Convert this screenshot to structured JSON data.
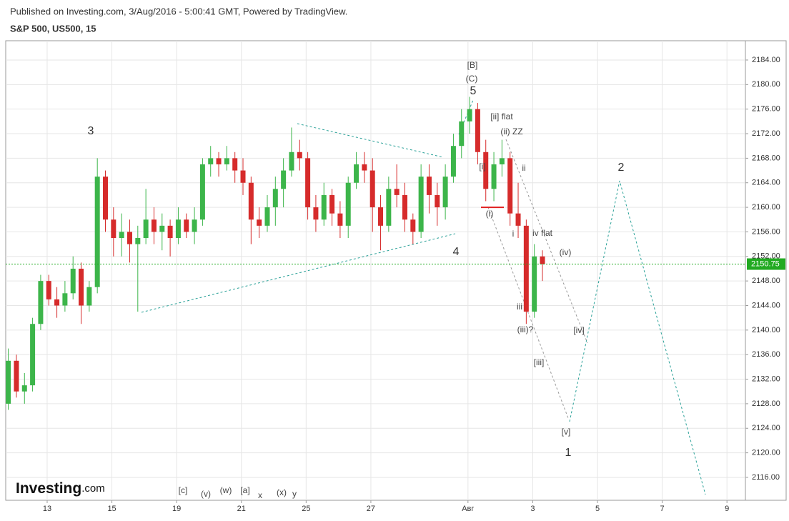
{
  "header": {
    "published": "Published on Investing.com, 3/Aug/2016 - 5:00:41 GMT, Powered by TradingView.",
    "symbol": "S&P 500, US500, 15",
    "logo_brand": "Investing",
    "logo_suffix": ".com"
  },
  "chart_data": {
    "type": "candlestick",
    "up_color": "#3cb54a",
    "down_color": "#d62b2b",
    "x": [
      -0.2,
      0.05,
      0.3,
      0.55,
      0.8,
      1.05,
      1.3,
      1.55,
      1.8,
      2.05,
      2.3,
      2.55,
      2.8,
      3.05,
      3.3,
      3.55,
      3.8,
      4.05,
      4.3,
      4.55,
      4.8,
      5.05,
      5.3,
      5.55,
      5.8,
      6.05,
      6.3,
      6.55,
      6.8,
      7.05,
      7.3,
      7.55,
      7.8,
      8.05,
      8.3,
      8.55,
      8.8,
      9.05,
      9.3,
      9.55,
      9.8,
      10.05,
      10.3,
      10.55,
      10.8,
      11.05,
      11.3,
      11.55,
      11.8,
      12.05,
      12.3,
      12.55,
      12.8,
      13.05,
      13.3,
      13.55,
      13.8,
      14.05,
      14.3,
      14.55,
      14.8,
      15.05,
      15.3,
      15.55,
      15.8,
      16.05,
      16.3
    ],
    "open": [
      2128,
      2135,
      2130,
      2131,
      2141,
      2148,
      2145,
      2144,
      2146,
      2150,
      2144,
      2147,
      2165,
      2158,
      2155,
      2156,
      2154,
      2155,
      2158,
      2156,
      2157,
      2155,
      2158,
      2156,
      2158,
      2167,
      2168,
      2167,
      2168,
      2166,
      2164,
      2158,
      2157,
      2160,
      2163,
      2166,
      2169,
      2168,
      2160,
      2158,
      2162,
      2159,
      2157,
      2164,
      2167,
      2166,
      2160,
      2157,
      2163,
      2162,
      2158,
      2156,
      2165,
      2162,
      2160,
      2165,
      2170,
      2174,
      2176,
      2169,
      2163,
      2167,
      2168,
      2159,
      2157,
      2143,
      2152
    ],
    "high": [
      2137,
      2136,
      2133,
      2142,
      2149,
      2149,
      2147,
      2148,
      2152,
      2151,
      2148,
      2168,
      2166,
      2160,
      2159,
      2158,
      2157,
      2163,
      2160,
      2159,
      2158,
      2160,
      2159,
      2160,
      2168,
      2170,
      2169,
      2170,
      2169,
      2168,
      2165,
      2160,
      2162,
      2165,
      2168,
      2173,
      2171,
      2169,
      2162,
      2164,
      2163,
      2161,
      2165,
      2169,
      2169,
      2168,
      2162,
      2165,
      2167,
      2164,
      2159,
      2167,
      2167,
      2164,
      2167,
      2172,
      2176,
      2178,
      2177,
      2171,
      2169,
      2171,
      2169,
      2164,
      2158,
      2154,
      2153
    ],
    "low": [
      2127,
      2129,
      2128,
      2130,
      2140,
      2144,
      2142,
      2143,
      2145,
      2141,
      2143,
      2146,
      2156,
      2152,
      2152,
      2151,
      2143,
      2154,
      2154,
      2153,
      2152,
      2154,
      2155,
      2154,
      2157,
      2165,
      2165,
      2166,
      2164,
      2162,
      2154,
      2155,
      2156,
      2157,
      2160,
      2165,
      2166,
      2158,
      2156,
      2157,
      2157,
      2155,
      2155,
      2163,
      2164,
      2156,
      2153,
      2156,
      2160,
      2156,
      2154,
      2155,
      2159,
      2157,
      2158,
      2164,
      2168,
      2172,
      2167,
      2161,
      2161,
      2165,
      2157,
      2155,
      2141,
      2142,
      2148
    ],
    "close": [
      2135,
      2130,
      2131,
      2141,
      2148,
      2145,
      2144,
      2146,
      2150,
      2144,
      2147,
      2165,
      2158,
      2155,
      2156,
      2154,
      2155,
      2158,
      2156,
      2157,
      2155,
      2158,
      2156,
      2158,
      2167,
      2168,
      2167,
      2168,
      2166,
      2164,
      2158,
      2157,
      2160,
      2163,
      2166,
      2169,
      2168,
      2160,
      2158,
      2162,
      2159,
      2157,
      2164,
      2167,
      2166,
      2160,
      2157,
      2163,
      2162,
      2158,
      2156,
      2165,
      2162,
      2160,
      2165,
      2170,
      2174,
      2176,
      2169,
      2163,
      2167,
      2168,
      2159,
      2157,
      2143,
      2152,
      2150.75
    ],
    "last_price": 2150.75,
    "last_price_label": "2150.75",
    "marker_level": 2160,
    "xlim": [
      -0.28,
      22.57
    ],
    "ylim": [
      2112.27,
      2187.14
    ],
    "xticks": [
      {
        "value": 1,
        "label": "13"
      },
      {
        "value": 3,
        "label": "15"
      },
      {
        "value": 5,
        "label": "19"
      },
      {
        "value": 7,
        "label": "21"
      },
      {
        "value": 9,
        "label": "25"
      },
      {
        "value": 11,
        "label": "27"
      },
      {
        "value": 14,
        "label": "Авг"
      },
      {
        "value": 16,
        "label": "3"
      },
      {
        "value": 18,
        "label": "5"
      },
      {
        "value": 20,
        "label": "7"
      },
      {
        "value": 22,
        "label": "9"
      }
    ],
    "yticks": [
      {
        "value": 2116,
        "label": "2116.00"
      },
      {
        "value": 2120,
        "label": "2120.00"
      },
      {
        "value": 2124,
        "label": "2124.00"
      },
      {
        "value": 2128,
        "label": "2128.00"
      },
      {
        "value": 2132,
        "label": "2132.00"
      },
      {
        "value": 2136,
        "label": "2136.00"
      },
      {
        "value": 2140,
        "label": "2140.00"
      },
      {
        "value": 2144,
        "label": "2144.00"
      },
      {
        "value": 2148,
        "label": "2148.00"
      },
      {
        "value": 2152,
        "label": "2152.00"
      },
      {
        "value": 2156,
        "label": "2156.00"
      },
      {
        "value": 2160,
        "label": "2160.00"
      },
      {
        "value": 2164,
        "label": "2164.00"
      },
      {
        "value": 2168,
        "label": "2168.00"
      },
      {
        "value": 2172,
        "label": "2172.00"
      },
      {
        "value": 2176,
        "label": "2176.00"
      },
      {
        "value": 2180,
        "label": "2180.00"
      },
      {
        "value": 2184,
        "label": "2184.00"
      }
    ],
    "grid": true,
    "annotations": [
      "[B]",
      "(C)",
      "5",
      "3",
      "4",
      "[ii] flat",
      "(ii) ZZ",
      "[i]",
      "ii",
      "(i)",
      "i",
      "iv flat",
      "(iv)",
      "iii",
      "(iii)?",
      "[iv]",
      "[iii]",
      "[v]",
      "1",
      "2",
      "[c]",
      "(v)",
      "(w)",
      "[a]",
      "x",
      "(x)",
      "y"
    ]
  }
}
